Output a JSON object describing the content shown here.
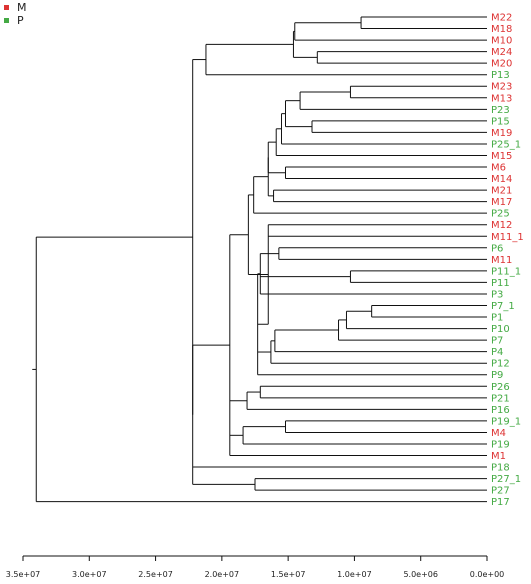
{
  "legend": [
    {
      "label": "M",
      "color": "#dd3333"
    },
    {
      "label": "P",
      "color": "#44aa44"
    }
  ],
  "chart_data": {
    "type": "dendrogram",
    "orientation": "horizontal, root on the left, leaves on the right",
    "x_axis": {
      "range": [
        35000000,
        0
      ],
      "ticks": [
        "3.5e+07",
        "3.0e+07",
        "2.5e+07",
        "2.0e+07",
        "1.5e+07",
        "1.0e+07",
        "5.0e+06",
        "0.0e+00"
      ],
      "tick_values": [
        35000000,
        30000000,
        25000000,
        20000000,
        15000000,
        10000000,
        5000000,
        0
      ]
    },
    "leaves": [
      {
        "label": "M22",
        "group": "M"
      },
      {
        "label": "M18",
        "group": "M"
      },
      {
        "label": "M10",
        "group": "M"
      },
      {
        "label": "M24",
        "group": "M"
      },
      {
        "label": "M20",
        "group": "M"
      },
      {
        "label": "P13",
        "group": "P"
      },
      {
        "label": "M23",
        "group": "M"
      },
      {
        "label": "M13",
        "group": "M"
      },
      {
        "label": "P23",
        "group": "P"
      },
      {
        "label": "P15",
        "group": "P"
      },
      {
        "label": "M19",
        "group": "M"
      },
      {
        "label": "P25_1",
        "group": "P"
      },
      {
        "label": "M15",
        "group": "M"
      },
      {
        "label": "M6",
        "group": "M"
      },
      {
        "label": "M14",
        "group": "M"
      },
      {
        "label": "M21",
        "group": "M"
      },
      {
        "label": "M17",
        "group": "M"
      },
      {
        "label": "P25",
        "group": "P"
      },
      {
        "label": "M12",
        "group": "M"
      },
      {
        "label": "M11_1",
        "group": "M"
      },
      {
        "label": "P6",
        "group": "P"
      },
      {
        "label": "M11",
        "group": "M"
      },
      {
        "label": "P11_1",
        "group": "P"
      },
      {
        "label": "P11",
        "group": "P"
      },
      {
        "label": "P3",
        "group": "P"
      },
      {
        "label": "P7_1",
        "group": "P"
      },
      {
        "label": "P1",
        "group": "P"
      },
      {
        "label": "P10",
        "group": "P"
      },
      {
        "label": "P7",
        "group": "P"
      },
      {
        "label": "P4",
        "group": "P"
      },
      {
        "label": "P12",
        "group": "P"
      },
      {
        "label": "P9",
        "group": "P"
      },
      {
        "label": "P26",
        "group": "P"
      },
      {
        "label": "P21",
        "group": "P"
      },
      {
        "label": "P16",
        "group": "P"
      },
      {
        "label": "P19_1",
        "group": "P"
      },
      {
        "label": "M4",
        "group": "M"
      },
      {
        "label": "P19",
        "group": "P"
      },
      {
        "label": "M1",
        "group": "M"
      },
      {
        "label": "P18",
        "group": "P"
      },
      {
        "label": "P27_1",
        "group": "P"
      },
      {
        "label": "P27",
        "group": "P"
      },
      {
        "label": "P17",
        "group": "P"
      }
    ],
    "tree": {
      "h": 34000000,
      "c": [
        {
          "h": 22200000,
          "c": [
            {
              "h": 21200000,
              "c": [
                {
                  "h": 14600000,
                  "c": [
                    {
                      "h": 14500000,
                      "c": [
                        {
                          "h": 9500000,
                          "c": [
                            "M22",
                            "M18"
                          ]
                        },
                        "M10"
                      ]
                    },
                    {
                      "h": 12800000,
                      "c": [
                        "M24",
                        "M20"
                      ]
                    }
                  ]
                },
                "P13"
              ]
            },
            {
              "h": 22200000,
              "c": [
                {
                  "h": 19400000,
                  "c": [
                    {
                      "h": 18000000,
                      "c": [
                        {
                          "h": 17600000,
                          "c": [
                            {
                              "h": 16500000,
                              "c": [
                                {
                                  "h": 16500000,
                                  "c": [
                                    {
                                      "h": 15900000,
                                      "c": [
                                        {
                                          "h": 15500000,
                                          "c": [
                                            {
                                              "h": 15200000,
                                              "c": [
                                                {
                                                  "h": 14100000,
                                                  "c": [
                                                    {
                                                      "h": 10300000,
                                                      "c": [
                                                        "M23",
                                                        "M13"
                                                      ]
                                                    },
                                                    "P23"
                                                  ]
                                                },
                                                {
                                                  "h": 13200000,
                                                  "c": [
                                                    "P15",
                                                    "M19"
                                                  ]
                                                }
                                              ]
                                            },
                                            "P25_1"
                                          ]
                                        },
                                        "M15"
                                      ]
                                    },
                                    {
                                      "h": 15200000,
                                      "c": [
                                        "M6",
                                        "M14"
                                      ]
                                    }
                                  ]
                                },
                                {
                                  "h": 16100000,
                                  "c": [
                                    "M21",
                                    "M17"
                                  ]
                                }
                              ]
                            },
                            "P25"
                          ]
                        },
                        {
                          "h": 16500000,
                          "c": [
                            "M12",
                            "M11_1",
                            {
                              "h": 17300000,
                              "c": [
                                {
                                  "h": 17100000,
                                  "c": [
                                    {
                                      "h": 15700000,
                                      "c": [
                                        "P6",
                                        "M11"
                                      ]
                                    },
                                    {
                                      "h": 10300000,
                                      "c": [
                                        "P11_1",
                                        "P11"
                                      ]
                                    },
                                    "P3"
                                  ]
                                },
                                {
                                  "h": 16300000,
                                  "c": [
                                    {
                                      "h": 16000000,
                                      "c": [
                                        {
                                          "h": 11200000,
                                          "c": [
                                            {
                                              "h": 10600000,
                                              "c": [
                                                {
                                                  "h": 8700000,
                                                  "c": [
                                                    "P7_1",
                                                    "P1"
                                                  ]
                                                },
                                                "P10"
                                              ]
                                            },
                                            "P7"
                                          ]
                                        },
                                        "P4"
                                      ]
                                    },
                                    "P12"
                                  ]
                                },
                                "P9"
                              ]
                            }
                          ]
                        }
                      ]
                    },
                    {
                      "h": 18100000,
                      "c": [
                        {
                          "h": 17100000,
                          "c": [
                            "P26",
                            "P21"
                          ]
                        },
                        "P16"
                      ]
                    },
                    {
                      "h": 18400000,
                      "c": [
                        {
                          "h": 15200000,
                          "c": [
                            "P19_1",
                            "M4"
                          ]
                        },
                        "P19"
                      ]
                    },
                    "M1"
                  ]
                },
                "P18",
                {
                  "h": 17500000,
                  "c": [
                    "P27_1",
                    "P27"
                  ]
                }
              ]
            }
          ]
        },
        "P17"
      ]
    }
  }
}
